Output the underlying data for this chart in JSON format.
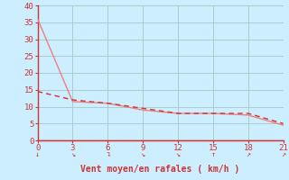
{
  "xlabel": "Vent moyen/en rafales ( km/h )",
  "bg_color": "#cceeff",
  "grid_color": "#aacccc",
  "axis_color": "#cc3333",
  "line1_x": [
    0,
    3,
    6,
    9,
    12,
    15,
    18,
    21
  ],
  "line1_y": [
    36,
    11.5,
    11,
    9,
    8,
    8,
    7.5,
    4.5
  ],
  "line2_x": [
    0,
    3,
    6,
    9,
    12,
    15,
    18,
    21
  ],
  "line2_y": [
    14.5,
    12,
    11,
    9.5,
    8,
    8,
    8,
    5
  ],
  "line1_color": "#f08080",
  "line2_color": "#cc3333",
  "xlim": [
    0,
    21
  ],
  "ylim": [
    0,
    40
  ],
  "xticks": [
    0,
    3,
    6,
    9,
    12,
    15,
    18,
    21
  ],
  "yticks": [
    0,
    5,
    10,
    15,
    20,
    25,
    30,
    35,
    40
  ],
  "title_color": "#cc3333",
  "xlabel_color": "#cc3333",
  "tick_color": "#cc3333",
  "arrow_chars": [
    "↓",
    "↘",
    "↴",
    "↘",
    "↘",
    "↑",
    "↗",
    "↗"
  ]
}
